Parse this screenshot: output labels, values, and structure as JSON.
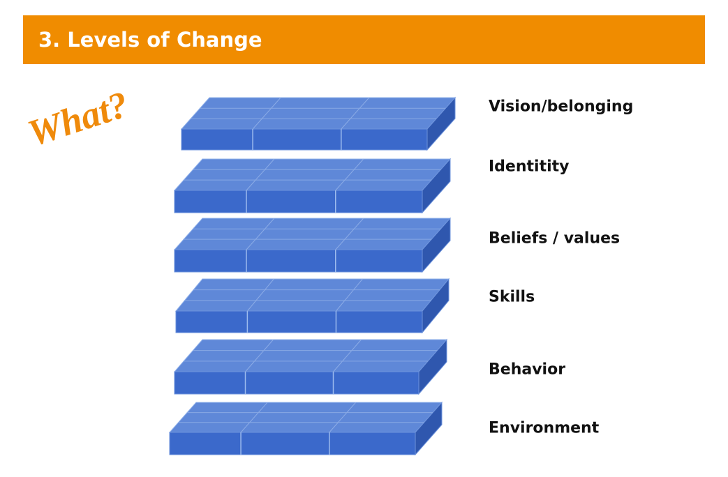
{
  "header": {
    "title": "3. Levels of Change"
  },
  "annotation": "What?",
  "levels": [
    "Vision/belonging",
    "Identitity",
    "Beliefs / values",
    "Skills",
    "Behavior",
    "Environment"
  ]
}
